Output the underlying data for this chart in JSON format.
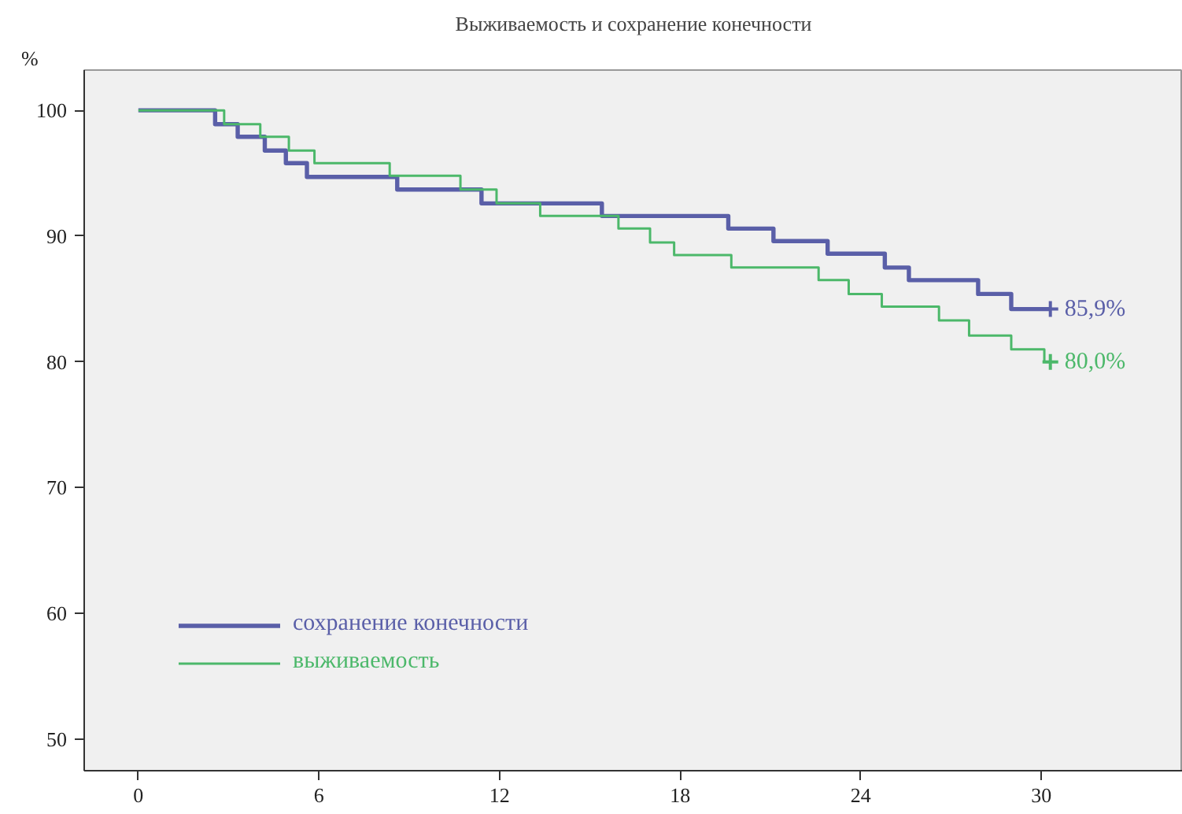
{
  "chart_data": {
    "type": "step",
    "title": "Выживаемость и сохранение конечности",
    "ylabel": "%",
    "xlim": [
      -1.8,
      34.7
    ],
    "ylim": [
      47.5,
      103.2
    ],
    "xticks": [
      0,
      6,
      12,
      18,
      24,
      30
    ],
    "yticks": [
      50,
      60,
      70,
      80,
      90,
      100
    ],
    "grid": false,
    "legend": "bottom left",
    "series": [
      {
        "name": "сохранение конечности",
        "color": "#5a5fa8",
        "x": [
          0,
          2.55,
          3.3,
          4.2,
          4.9,
          5.6,
          8.6,
          11.4,
          15.4,
          19.6,
          21.1,
          22.9,
          24.8,
          25.6,
          27.9,
          29.0,
          30.3
        ],
        "values": [
          100,
          98.9,
          97.9,
          96.8,
          95.8,
          94.7,
          93.7,
          92.6,
          91.6,
          90.6,
          89.6,
          88.6,
          87.5,
          86.5,
          85.4,
          84.2,
          84.2
        ]
      },
      {
        "name": "выживаемость",
        "color": "#4cb86a",
        "x": [
          0,
          2.85,
          4.05,
          5.0,
          5.85,
          8.35,
          10.7,
          11.9,
          13.35,
          15.95,
          17.0,
          17.8,
          19.7,
          22.6,
          23.6,
          24.7,
          26.6,
          27.6,
          29.0,
          30.1,
          30.3
        ],
        "values": [
          100,
          98.9,
          97.9,
          96.8,
          95.8,
          94.8,
          93.7,
          92.6,
          91.6,
          90.6,
          89.5,
          88.5,
          87.5,
          86.5,
          85.4,
          84.4,
          83.3,
          82.1,
          81.0,
          80.0,
          80.0
        ]
      }
    ],
    "annotations": [
      {
        "text": "85,9%",
        "x": 30.3,
        "y": 84.2
      },
      {
        "text": "80,0%",
        "x": 30.3,
        "y": 80.0
      }
    ]
  }
}
